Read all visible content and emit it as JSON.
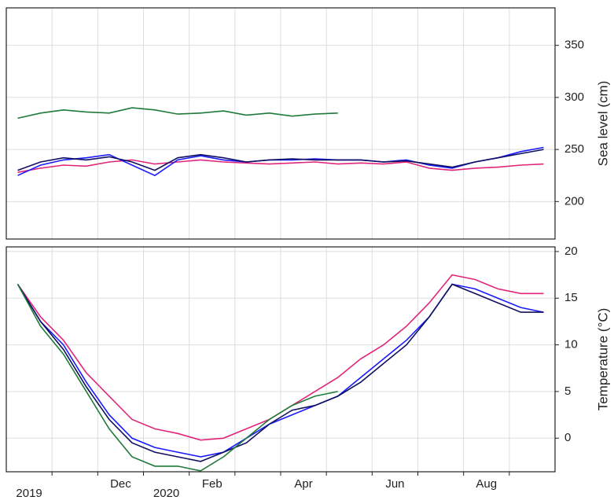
{
  "chart_data": [
    {
      "type": "line",
      "y_label": "Sea level (cm)",
      "ylim": [
        164,
        386
      ],
      "yticks": [
        200,
        250,
        300,
        350
      ],
      "grid": true,
      "series": [
        {
          "color": "#1f7a3a",
          "values": [
            280,
            285,
            288,
            286,
            285,
            290,
            288,
            284,
            285,
            287,
            283,
            285,
            282,
            284,
            285,
            null,
            null,
            null,
            null,
            null,
            null,
            null,
            null,
            null
          ]
        },
        {
          "color": "#e0267a",
          "values": [
            228,
            232,
            235,
            234,
            238,
            240,
            236,
            238,
            240,
            238,
            237,
            236,
            237,
            238,
            236,
            237,
            236,
            238,
            232,
            230,
            232,
            233,
            235,
            236
          ]
        },
        {
          "color": "#1a1aff",
          "values": [
            225,
            235,
            240,
            242,
            245,
            235,
            225,
            240,
            244,
            240,
            238,
            240,
            240,
            241,
            240,
            240,
            238,
            240,
            235,
            232,
            238,
            242,
            248,
            252
          ]
        },
        {
          "color": "#101060",
          "values": [
            230,
            238,
            242,
            240,
            243,
            238,
            230,
            242,
            245,
            242,
            238,
            240,
            241,
            240,
            240,
            240,
            238,
            239,
            236,
            233,
            238,
            242,
            246,
            250
          ]
        }
      ]
    },
    {
      "type": "line",
      "y_label": "Temperature (°C)",
      "ylim": [
        -3.6,
        20.5
      ],
      "yticks": [
        0,
        5,
        10,
        15,
        20
      ],
      "grid": true,
      "categories": [
        "2019",
        null,
        null,
        null,
        "Dec",
        null,
        "2020",
        null,
        "Feb",
        null,
        null,
        null,
        "Apr",
        null,
        null,
        null,
        "Jun",
        null,
        null,
        null,
        "Aug",
        null,
        null,
        null
      ],
      "series": [
        {
          "color": "#e0267a",
          "values": [
            16.5,
            13,
            10.5,
            7,
            4.5,
            2,
            1,
            0.5,
            -0.2,
            0,
            1,
            2,
            3.5,
            5,
            6.5,
            8.5,
            10,
            12,
            14.5,
            17.5,
            17,
            16,
            15.5,
            15.5
          ]
        },
        {
          "color": "#1a1aff",
          "values": [
            16.5,
            12.5,
            10,
            6,
            2.5,
            0,
            -1,
            -1.5,
            -2,
            -1.5,
            0,
            1.5,
            2.5,
            3.5,
            4.5,
            6.5,
            8.5,
            10.5,
            13,
            16.5,
            16,
            15,
            14,
            13.5
          ]
        },
        {
          "color": "#101060",
          "values": [
            16.5,
            12.5,
            9.5,
            5.5,
            2,
            -0.5,
            -1.5,
            -2,
            -2.5,
            -1.5,
            -0.5,
            1.5,
            3,
            3.5,
            4.5,
            6,
            8,
            10,
            13,
            16.5,
            15.5,
            14.5,
            13.5,
            13.5
          ]
        },
        {
          "color": "#1f7a3a",
          "values": [
            16.5,
            12,
            9,
            5,
            1,
            -2,
            -3,
            -3,
            -3.5,
            -2,
            0,
            2,
            3.5,
            4.5,
            5,
            null,
            null,
            null,
            null,
            null,
            null,
            null,
            null,
            null
          ]
        }
      ]
    }
  ]
}
